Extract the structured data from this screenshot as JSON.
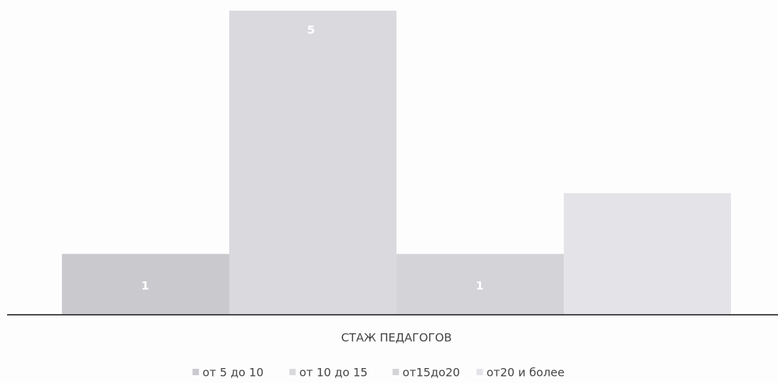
{
  "chart_data": {
    "type": "bar",
    "title": "СТАЖ ПЕДАГОГОВ",
    "series": [
      {
        "name": "от 5 до 10",
        "color": "#c9c9ce",
        "values": [
          1
        ],
        "value_labels": [
          "1"
        ]
      },
      {
        "name": "от 10 до 15",
        "color": "#dadade",
        "values": [
          5
        ],
        "value_labels": [
          "5"
        ]
      },
      {
        "name": "от15до20",
        "color": "#d3d3d8",
        "values": [
          1
        ],
        "value_labels": [
          "1"
        ]
      },
      {
        "name": "от20 и более",
        "color": "#e4e4e8",
        "values": [
          2
        ],
        "value_labels": [
          null
        ]
      }
    ],
    "ylim": [
      0,
      5
    ]
  }
}
